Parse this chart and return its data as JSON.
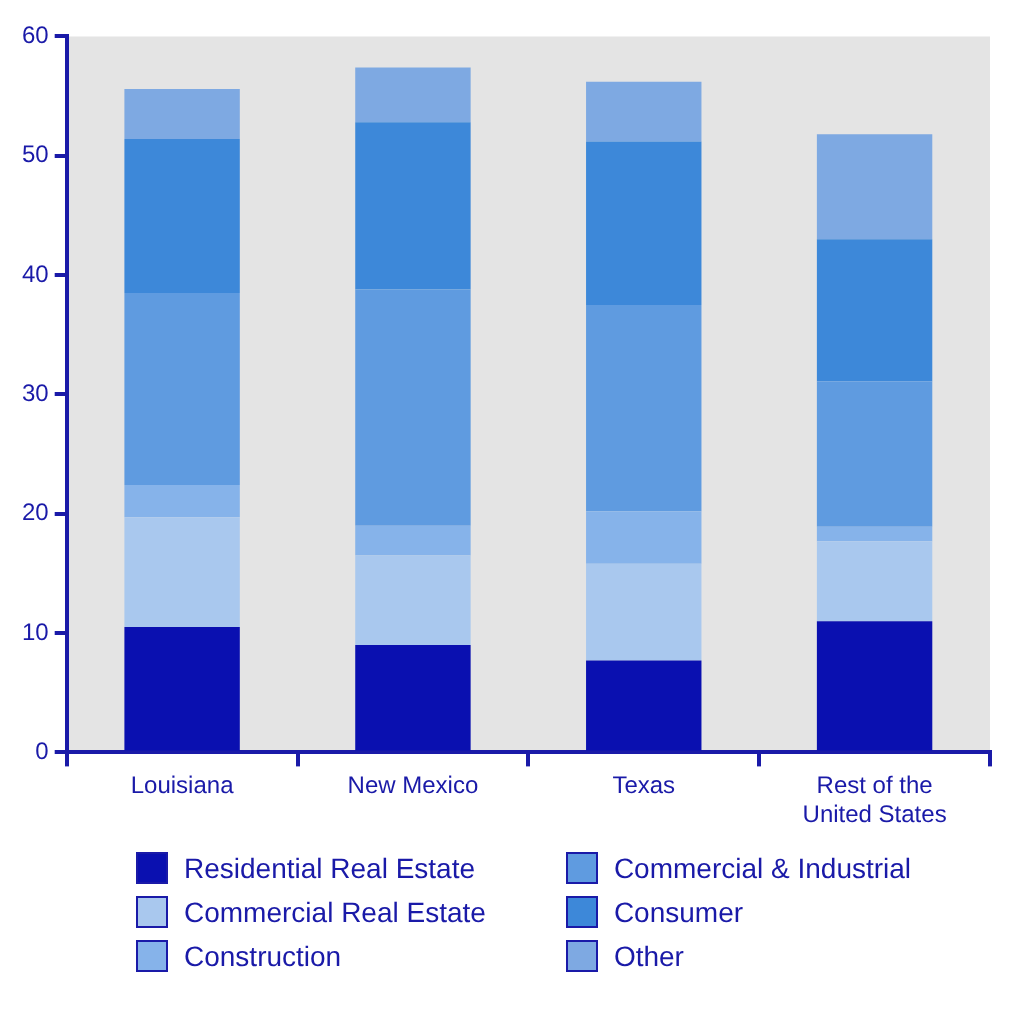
{
  "chart_data": {
    "type": "bar",
    "stacked": true,
    "categories": [
      "Louisiana",
      "New Mexico",
      "Texas",
      "Rest of the United States"
    ],
    "series": [
      {
        "name": "Residential Real Estate",
        "color": "#0a10b0",
        "values": [
          10.5,
          9.0,
          7.7,
          11.0
        ]
      },
      {
        "name": "Commercial Real Estate",
        "color": "#a9c8ee",
        "values": [
          9.2,
          7.5,
          8.1,
          6.7
        ]
      },
      {
        "name": "Construction",
        "color": "#86b3ea",
        "values": [
          2.7,
          2.5,
          4.4,
          1.2
        ]
      },
      {
        "name": "Commercial & Industrial",
        "color": "#5f9be0",
        "values": [
          16.1,
          19.8,
          17.3,
          12.2
        ]
      },
      {
        "name": "Consumer",
        "color": "#3d88d9",
        "values": [
          12.9,
          14.0,
          13.7,
          11.9
        ]
      },
      {
        "name": "Other",
        "color": "#7ea9e2",
        "values": [
          4.2,
          4.6,
          5.0,
          8.8
        ]
      }
    ],
    "ylim": [
      0,
      60
    ],
    "yticks": [
      0,
      10,
      20,
      30,
      40,
      50,
      60
    ],
    "grid": false,
    "legend": "bottom"
  }
}
